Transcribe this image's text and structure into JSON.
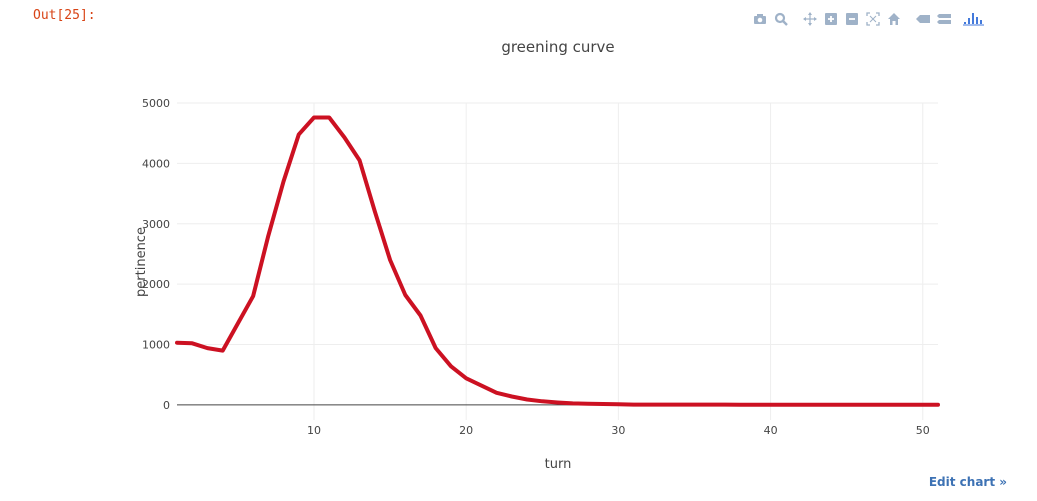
{
  "cell": {
    "out_label": "Out[25]:"
  },
  "modebar": {
    "buttons": [
      {
        "icon": "camera-icon"
      },
      {
        "icon": "zoom-icon"
      },
      {
        "icon": "pan-icon"
      },
      {
        "icon": "zoom-in-icon"
      },
      {
        "icon": "zoom-out-icon"
      },
      {
        "icon": "autoscale-icon"
      },
      {
        "icon": "home-icon"
      },
      {
        "icon": "spike-lines-icon"
      },
      {
        "icon": "compare-hover-icon"
      },
      {
        "icon": "plotly-logo-icon"
      }
    ],
    "color": "#9fb2c8",
    "logo_color": "#447adb"
  },
  "edit_link": "Edit chart »",
  "chart_data": {
    "type": "line",
    "title": "greening curve",
    "xlabel": "turn",
    "ylabel": "pertinence",
    "xlim": [
      1,
      51
    ],
    "ylim": [
      -250,
      5000
    ],
    "xticks": [
      10,
      20,
      30,
      40,
      50
    ],
    "yticks": [
      0,
      1000,
      2000,
      3000,
      4000,
      5000
    ],
    "grid": true,
    "line_color": "#cc1122",
    "series": [
      {
        "x": [
          1,
          2,
          3,
          4,
          5,
          6,
          7,
          8,
          9,
          10,
          11,
          12,
          13,
          14,
          15,
          16,
          17,
          18,
          19,
          20,
          21,
          22,
          23,
          24,
          25,
          26,
          27,
          28,
          29,
          30,
          31,
          32,
          33,
          34,
          35,
          36,
          37,
          38,
          39,
          40,
          41,
          42,
          43,
          44,
          45,
          46,
          47,
          48,
          49,
          50,
          51
        ],
        "values": [
          1030,
          1020,
          940,
          900,
          1350,
          1800,
          2800,
          3700,
          4480,
          4760,
          4760,
          4430,
          4050,
          3200,
          2400,
          1820,
          1480,
          940,
          640,
          440,
          320,
          200,
          140,
          90,
          60,
          40,
          25,
          20,
          15,
          10,
          5,
          5,
          5,
          5,
          5,
          5,
          5,
          3,
          3,
          3,
          3,
          3,
          3,
          3,
          3,
          3,
          3,
          3,
          3,
          3,
          3
        ]
      }
    ]
  }
}
